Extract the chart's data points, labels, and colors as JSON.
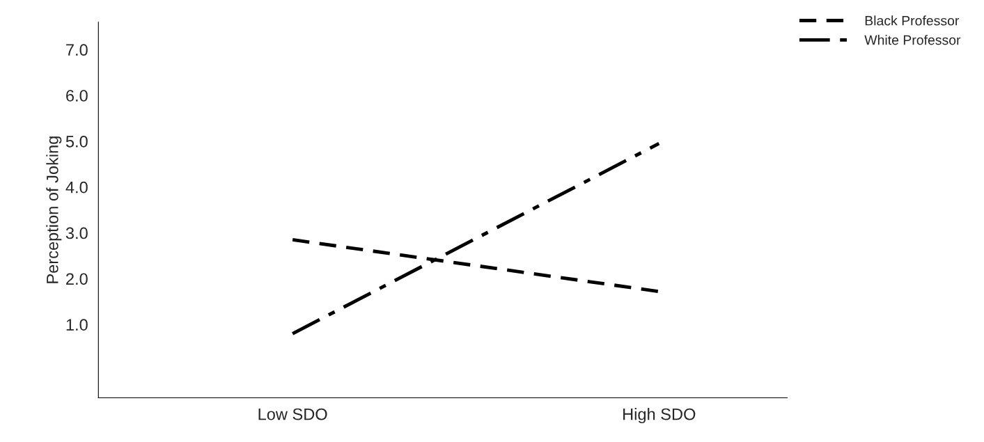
{
  "chart_data": {
    "type": "line",
    "ylabel": "Perception of Joking",
    "categories": [
      "Low SDO",
      "High SDO"
    ],
    "ylim": [
      -0.6,
      7.6
    ],
    "yticks": [
      {
        "value": 1,
        "label": "1.0"
      },
      {
        "value": 2,
        "label": "2.0"
      },
      {
        "value": 3,
        "label": "3.0"
      },
      {
        "value": 4,
        "label": "4.0"
      },
      {
        "value": 5,
        "label": "5.0"
      },
      {
        "value": 6,
        "label": "6.0"
      },
      {
        "value": 7,
        "label": "7.0"
      }
    ],
    "series": [
      {
        "name": "Black Professor",
        "color": "#000000",
        "line_style": "dashed",
        "values": [
          2.85,
          1.72
        ]
      },
      {
        "name": "White Professor",
        "color": "#000000",
        "line_style": "dashdot",
        "values": [
          0.8,
          4.95
        ]
      }
    ],
    "grid": false,
    "legend": "top right",
    "marker": "none"
  }
}
